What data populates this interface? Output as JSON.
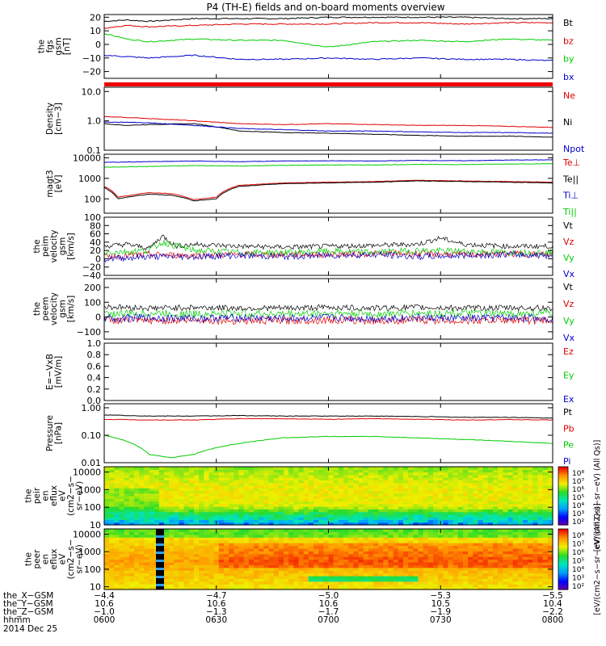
{
  "title": "P4 (TH-E) fields and on-board moments overview",
  "chart_data": [
    {
      "type": "line",
      "ylabel": [
        "the",
        "fgs",
        "gsm",
        "[nT]"
      ],
      "ylim": [
        -25,
        22
      ],
      "yticks": [
        "20",
        "10",
        "0",
        "−10",
        "−20"
      ],
      "ytick_values": [
        20,
        10,
        0,
        -10,
        -20
      ],
      "log": false,
      "series": [
        {
          "name": "Bt",
          "color": "#000000",
          "x": [
            0,
            0.05,
            0.1,
            0.2,
            0.3,
            0.4,
            0.5,
            0.6,
            0.7,
            0.8,
            0.9,
            1.0
          ],
          "y": [
            17,
            18,
            17,
            19,
            19,
            19,
            20,
            20,
            20,
            20,
            19,
            19
          ]
        },
        {
          "name": "bz",
          "color": "#dd0000",
          "x": [
            0,
            0.05,
            0.1,
            0.2,
            0.3,
            0.4,
            0.5,
            0.6,
            0.7,
            0.8,
            0.9,
            1.0
          ],
          "y": [
            12,
            14,
            13,
            14,
            15,
            15,
            15,
            16,
            16,
            15,
            16,
            16
          ]
        },
        {
          "name": "by",
          "color": "#00cc00",
          "x": [
            0,
            0.05,
            0.1,
            0.2,
            0.3,
            0.4,
            0.5,
            0.6,
            0.7,
            0.8,
            0.9,
            1.0
          ],
          "y": [
            8,
            4,
            2,
            4,
            3,
            3,
            -2,
            2,
            3,
            2,
            4,
            3
          ]
        },
        {
          "name": "bx",
          "color": "#0000cc",
          "x": [
            0,
            0.05,
            0.1,
            0.2,
            0.3,
            0.4,
            0.5,
            0.6,
            0.7,
            0.8,
            0.9,
            1.0
          ],
          "y": [
            -8,
            -9,
            -10,
            -8,
            -11,
            -11,
            -10,
            -11,
            -10,
            -11,
            -11,
            -12
          ]
        }
      ]
    },
    {
      "type": "line",
      "ylabel": [
        "Density",
        "[cm−3]"
      ],
      "ylim": [
        0.1,
        14
      ],
      "yticks": [
        "10.0",
        "1.0",
        "0.1"
      ],
      "ytick_values": [
        10,
        1,
        0.1
      ],
      "log": true,
      "series": [
        {
          "name": "Ne",
          "color": "#dd0000",
          "x": [
            0,
            0.05,
            0.1,
            0.2,
            0.3,
            0.4,
            0.5,
            0.6,
            0.7,
            0.8,
            0.9,
            1.0
          ],
          "y": [
            1.4,
            1.3,
            1.2,
            1.0,
            0.8,
            0.75,
            0.8,
            0.75,
            0.7,
            0.7,
            0.65,
            0.6
          ]
        },
        {
          "name": "Ni",
          "color": "#000000",
          "x": [
            0,
            0.05,
            0.1,
            0.2,
            0.3,
            0.4,
            0.5,
            0.6,
            0.7,
            0.8,
            0.9,
            1.0
          ],
          "y": [
            0.8,
            0.7,
            0.75,
            0.8,
            0.45,
            0.4,
            0.38,
            0.35,
            0.32,
            0.3,
            0.3,
            0.28
          ]
        },
        {
          "name": "Npot",
          "color": "#0000cc",
          "x": [
            0,
            0.05,
            0.1,
            0.2,
            0.3,
            0.4,
            0.5,
            0.6,
            0.7,
            0.8,
            0.9,
            1.0
          ],
          "y": [
            0.9,
            0.9,
            0.85,
            0.7,
            0.55,
            0.5,
            0.45,
            0.45,
            0.42,
            0.4,
            0.4,
            0.38
          ]
        }
      ]
    },
    {
      "type": "line",
      "ylabel": [
        "magt3",
        "[eV]"
      ],
      "ylim": [
        20,
        15000
      ],
      "yticks": [
        "10000",
        "1000",
        "100"
      ],
      "ytick_values": [
        10000,
        1000,
        100
      ],
      "log": true,
      "series": [
        {
          "name": "Te⊥",
          "color": "#dd0000",
          "x": [
            0,
            0.03,
            0.06,
            0.1,
            0.15,
            0.2,
            0.25,
            0.3,
            0.4,
            0.5,
            0.6,
            0.7,
            0.8,
            0.9,
            1.0
          ],
          "y": [
            400,
            120,
            150,
            200,
            180,
            90,
            120,
            450,
            600,
            650,
            700,
            800,
            750,
            700,
            650
          ]
        },
        {
          "name": "Te||",
          "color": "#000000",
          "x": [
            0,
            0.03,
            0.06,
            0.1,
            0.15,
            0.2,
            0.25,
            0.3,
            0.4,
            0.5,
            0.6,
            0.7,
            0.8,
            0.9,
            1.0
          ],
          "y": [
            350,
            100,
            130,
            170,
            150,
            80,
            100,
            400,
            550,
            600,
            650,
            750,
            700,
            650,
            600
          ]
        },
        {
          "name": "Ti⊥",
          "color": "#0000cc",
          "x": [
            0,
            0.1,
            0.2,
            0.3,
            0.4,
            0.5,
            0.6,
            0.7,
            0.8,
            0.9,
            1.0
          ],
          "y": [
            6000,
            6500,
            7000,
            6500,
            7000,
            7200,
            7000,
            7500,
            7200,
            7800,
            8000
          ]
        },
        {
          "name": "Ti||",
          "color": "#00cc00",
          "x": [
            0,
            0.1,
            0.2,
            0.3,
            0.4,
            0.5,
            0.6,
            0.7,
            0.8,
            0.9,
            1.0
          ],
          "y": [
            3500,
            3800,
            4200,
            4000,
            4300,
            4500,
            4500,
            4800,
            4700,
            5000,
            5200
          ]
        }
      ]
    },
    {
      "type": "line",
      "ylabel": [
        "the",
        "peim",
        "velocity",
        "gsm",
        "[km/s]"
      ],
      "ylim": [
        -40,
        100
      ],
      "yticks": [
        "100",
        "80",
        "60",
        "40",
        "20",
        "0",
        "−20",
        "−40"
      ],
      "ytick_values": [
        100,
        80,
        60,
        40,
        20,
        0,
        -20,
        -40
      ],
      "log": false,
      "noise": 12,
      "series": [
        {
          "name": "Vt",
          "color": "#000000",
          "x": [
            0,
            0.05,
            0.1,
            0.13,
            0.16,
            0.2,
            0.3,
            0.4,
            0.5,
            0.6,
            0.7,
            0.75,
            0.8,
            0.9,
            1.0
          ],
          "y": [
            30,
            35,
            25,
            55,
            30,
            35,
            30,
            28,
            30,
            32,
            35,
            50,
            35,
            30,
            30
          ]
        },
        {
          "name": "Vz",
          "color": "#dd0000",
          "x": [
            0,
            0.1,
            0.2,
            0.3,
            0.4,
            0.5,
            0.6,
            0.7,
            0.8,
            0.9,
            1.0
          ],
          "y": [
            5,
            10,
            8,
            10,
            10,
            10,
            12,
            12,
            10,
            12,
            10
          ]
        },
        {
          "name": "Vy",
          "color": "#00cc00",
          "x": [
            0,
            0.1,
            0.13,
            0.2,
            0.3,
            0.4,
            0.5,
            0.6,
            0.7,
            0.8,
            0.9,
            1.0
          ],
          "y": [
            15,
            20,
            40,
            20,
            15,
            15,
            18,
            15,
            20,
            18,
            15,
            15
          ]
        },
        {
          "name": "Vx",
          "color": "#0000cc",
          "x": [
            0,
            0.1,
            0.2,
            0.3,
            0.4,
            0.5,
            0.6,
            0.7,
            0.8,
            0.9,
            1.0
          ],
          "y": [
            0,
            5,
            5,
            8,
            5,
            8,
            10,
            5,
            8,
            10,
            8
          ]
        }
      ]
    },
    {
      "type": "line",
      "ylabel": [
        "the",
        "peem",
        "velocity",
        "gsm",
        "[km/s]"
      ],
      "ylim": [
        -150,
        260
      ],
      "yticks": [
        "200",
        "100",
        "0",
        "−100"
      ],
      "ytick_values": [
        200,
        100,
        0,
        -100
      ],
      "log": false,
      "noise": 40,
      "series": [
        {
          "name": "Vt",
          "color": "#000000",
          "x": [
            0,
            0.1,
            0.2,
            0.3,
            0.4,
            0.5,
            0.6,
            0.7,
            0.8,
            0.9,
            1.0
          ],
          "y": [
            70,
            60,
            65,
            60,
            60,
            65,
            60,
            65,
            60,
            62,
            60
          ]
        },
        {
          "name": "Vz",
          "color": "#dd0000",
          "x": [
            0,
            0.1,
            0.2,
            0.3,
            0.4,
            0.5,
            0.6,
            0.7,
            0.8,
            0.9,
            1.0
          ],
          "y": [
            -20,
            -25,
            -20,
            -25,
            -25,
            -20,
            -25,
            -20,
            -25,
            -20,
            -25
          ]
        },
        {
          "name": "Vy",
          "color": "#00cc00",
          "x": [
            0,
            0.1,
            0.2,
            0.3,
            0.4,
            0.5,
            0.6,
            0.7,
            0.8,
            0.9,
            1.0
          ],
          "y": [
            20,
            25,
            20,
            25,
            20,
            25,
            20,
            25,
            25,
            20,
            25
          ]
        },
        {
          "name": "Vx",
          "color": "#0000cc",
          "x": [
            0,
            0.1,
            0.2,
            0.3,
            0.4,
            0.5,
            0.6,
            0.7,
            0.8,
            0.9,
            1.0
          ],
          "y": [
            -10,
            -5,
            -10,
            -5,
            -10,
            -5,
            -10,
            -5,
            -10,
            -5,
            -10
          ]
        }
      ]
    },
    {
      "type": "line",
      "ylabel": [
        "E=−VxB",
        "[mV/m]"
      ],
      "ylim": [
        0,
        1
      ],
      "yticks": [
        "1.0",
        "0.8",
        "0.6",
        "0.4",
        "0.2",
        "0.0"
      ],
      "ytick_values": [
        1.0,
        0.8,
        0.6,
        0.4,
        0.2,
        0.0
      ],
      "log": false,
      "series": [
        {
          "name": "Ez",
          "color": "#dd0000",
          "x": [],
          "y": []
        },
        {
          "name": "Ey",
          "color": "#00cc00",
          "x": [],
          "y": []
        },
        {
          "name": "Ex",
          "color": "#0000cc",
          "x": [],
          "y": []
        }
      ]
    },
    {
      "type": "line",
      "ylabel": [
        "Pressure",
        "[nPa]"
      ],
      "ylim": [
        0.01,
        1.4
      ],
      "yticks": [
        "1.00",
        "0.10",
        "0.01"
      ],
      "ytick_values": [
        1.0,
        0.1,
        0.01
      ],
      "log": true,
      "series": [
        {
          "name": "Pt",
          "color": "#000000",
          "x": [
            0,
            0.1,
            0.2,
            0.3,
            0.4,
            0.5,
            0.6,
            0.7,
            0.8,
            0.9,
            1.0
          ],
          "y": [
            0.55,
            0.5,
            0.5,
            0.52,
            0.5,
            0.5,
            0.5,
            0.48,
            0.45,
            0.45,
            0.42
          ]
        },
        {
          "name": "Pb",
          "color": "#dd0000",
          "x": [
            0,
            0.1,
            0.2,
            0.3,
            0.4,
            0.5,
            0.6,
            0.7,
            0.8,
            0.9,
            1.0
          ],
          "y": [
            0.38,
            0.36,
            0.36,
            0.4,
            0.4,
            0.38,
            0.4,
            0.38,
            0.36,
            0.37,
            0.36
          ]
        },
        {
          "name": "Pe",
          "color": "#00cc00",
          "x": [
            0,
            0.05,
            0.1,
            0.15,
            0.2,
            0.3,
            0.4,
            0.5,
            0.6,
            0.7,
            0.8,
            0.9,
            1.0
          ],
          "y": [
            0.1,
            0.06,
            0.02,
            0.015,
            0.02,
            0.05,
            0.08,
            0.09,
            0.09,
            0.08,
            0.07,
            0.06,
            0.05
          ]
        },
        {
          "name": "Pi",
          "color": "#0000cc",
          "x": [],
          "y": []
        }
      ]
    },
    {
      "type": "heatmap",
      "ylabel": [
        "the",
        "peir",
        "en",
        "eflux",
        "eV",
        "(cm2−s−",
        "sr−eV)"
      ],
      "ylim": [
        10,
        20000
      ],
      "yticks": [
        "10000",
        "1000",
        "100",
        "10"
      ],
      "ytick_values": [
        10000,
        1000,
        100,
        10
      ],
      "log": true
    },
    {
      "type": "heatmap",
      "ylabel": [
        "the",
        "peer",
        "en",
        "eflux",
        "eV",
        "(cm2−s−",
        "sr−eV)"
      ],
      "ylim": [
        7,
        20000
      ],
      "yticks": [
        "10000",
        "1000",
        "100",
        "10"
      ],
      "ytick_values": [
        10000,
        1000,
        100,
        10
      ],
      "log": true
    }
  ],
  "colorbars": [
    {
      "label": "eV/(cm2−s−sr−eV) (All Qs)",
      "ticks": [
        "10⁸",
        "10⁷",
        "10⁶",
        "10⁵",
        "10⁴",
        "10³",
        "10²"
      ]
    },
    {
      "label": "eV/(cm2−s−sr−eV) (All Qs)",
      "ticks": [
        "10⁸",
        "10⁷",
        "10⁶",
        "10⁵",
        "10⁴",
        "10³",
        "10²"
      ]
    }
  ],
  "xaxis": {
    "row_labels": [
      "the_X−GSM",
      "the_Y−GSM",
      "the_Z−GSM",
      "hhmm",
      "2014 Dec 25"
    ],
    "tick_positions": [
      0,
      0.25,
      0.5,
      0.75,
      1.0
    ],
    "columns": [
      [
        "−4.4",
        "10.6",
        "−1.0",
        "0600"
      ],
      [
        "−4.7",
        "10.6",
        "−1.3",
        "0630"
      ],
      [
        "−5.0",
        "10.6",
        "−1.7",
        "0700"
      ],
      [
        "−5.3",
        "10.5",
        "−1.9",
        "0730"
      ],
      [
        "−5.5",
        "10.4",
        "−2.2",
        "0800"
      ]
    ]
  }
}
